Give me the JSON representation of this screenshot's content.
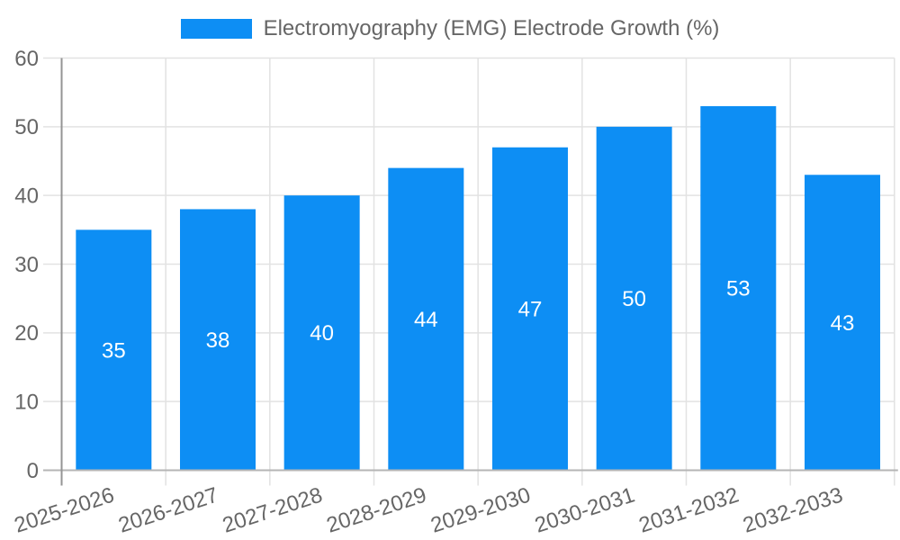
{
  "chart_data": {
    "type": "bar",
    "title": "Electromyography (EMG) Electrode Growth (%)",
    "categories": [
      "2025-2026",
      "2026-2027",
      "2027-2028",
      "2028-2029",
      "2029-2030",
      "2030-2031",
      "2031-2032",
      "2032-2033"
    ],
    "values": [
      35,
      38,
      40,
      44,
      47,
      50,
      53,
      43
    ],
    "xlabel": "",
    "ylabel": "",
    "ylim": [
      0,
      60
    ],
    "yticks": [
      0,
      10,
      20,
      30,
      40,
      50,
      60
    ],
    "grid": true,
    "legend_position": "top",
    "value_labels_inside_bars": true,
    "colors": {
      "bar": "#0d8ef4",
      "grid": "#e2e2e2",
      "axis_line": "#949494",
      "baseline": "#b5b5b5",
      "text": "#666666",
      "value_label": "#ffffff"
    }
  }
}
